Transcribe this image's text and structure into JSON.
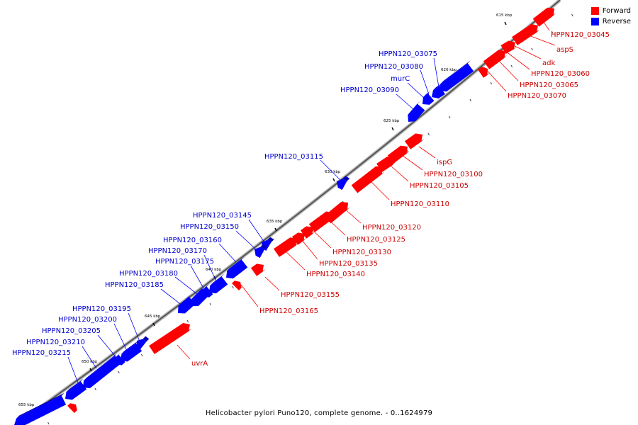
{
  "legend": {
    "forward_label": "Forward",
    "reverse_label": "Reverse",
    "forward_color": "#ff0000",
    "reverse_color": "#0000ff"
  },
  "caption": "Helicobacter pylori Puno120, complete genome. - 0..1624979",
  "scale_labels": [
    "615 kbp",
    "620 kbp",
    "625 kbp",
    "630 kbp",
    "635 kbp",
    "640 kbp",
    "645 kbp",
    "650 kbp",
    "655 kbp"
  ],
  "forward_genes": [
    "HPPN120_03045",
    "aspS",
    "adk",
    "HPPN120_03060",
    "HPPN120_03065",
    "HPPN120_03070",
    "ispG",
    "HPPN120_03100",
    "HPPN120_03105",
    "HPPN120_03110",
    "HPPN120_03120",
    "HPPN120_03125",
    "HPPN120_03130",
    "HPPN120_03135",
    "HPPN120_03140",
    "HPPN120_03155",
    "HPPN120_03165",
    "uvrA"
  ],
  "reverse_genes": [
    "HPPN120_03075",
    "HPPN120_03080",
    "murC",
    "HPPN120_03090",
    "HPPN120_03115",
    "HPPN120_03145",
    "HPPN120_03150",
    "HPPN120_03160",
    "HPPN120_03170",
    "HPPN120_03175",
    "HPPN120_03180",
    "HPPN120_03185",
    "HPPN120_03195",
    "HPPN120_03200",
    "HPPN120_03205",
    "HPPN120_03210",
    "HPPN120_03215"
  ]
}
